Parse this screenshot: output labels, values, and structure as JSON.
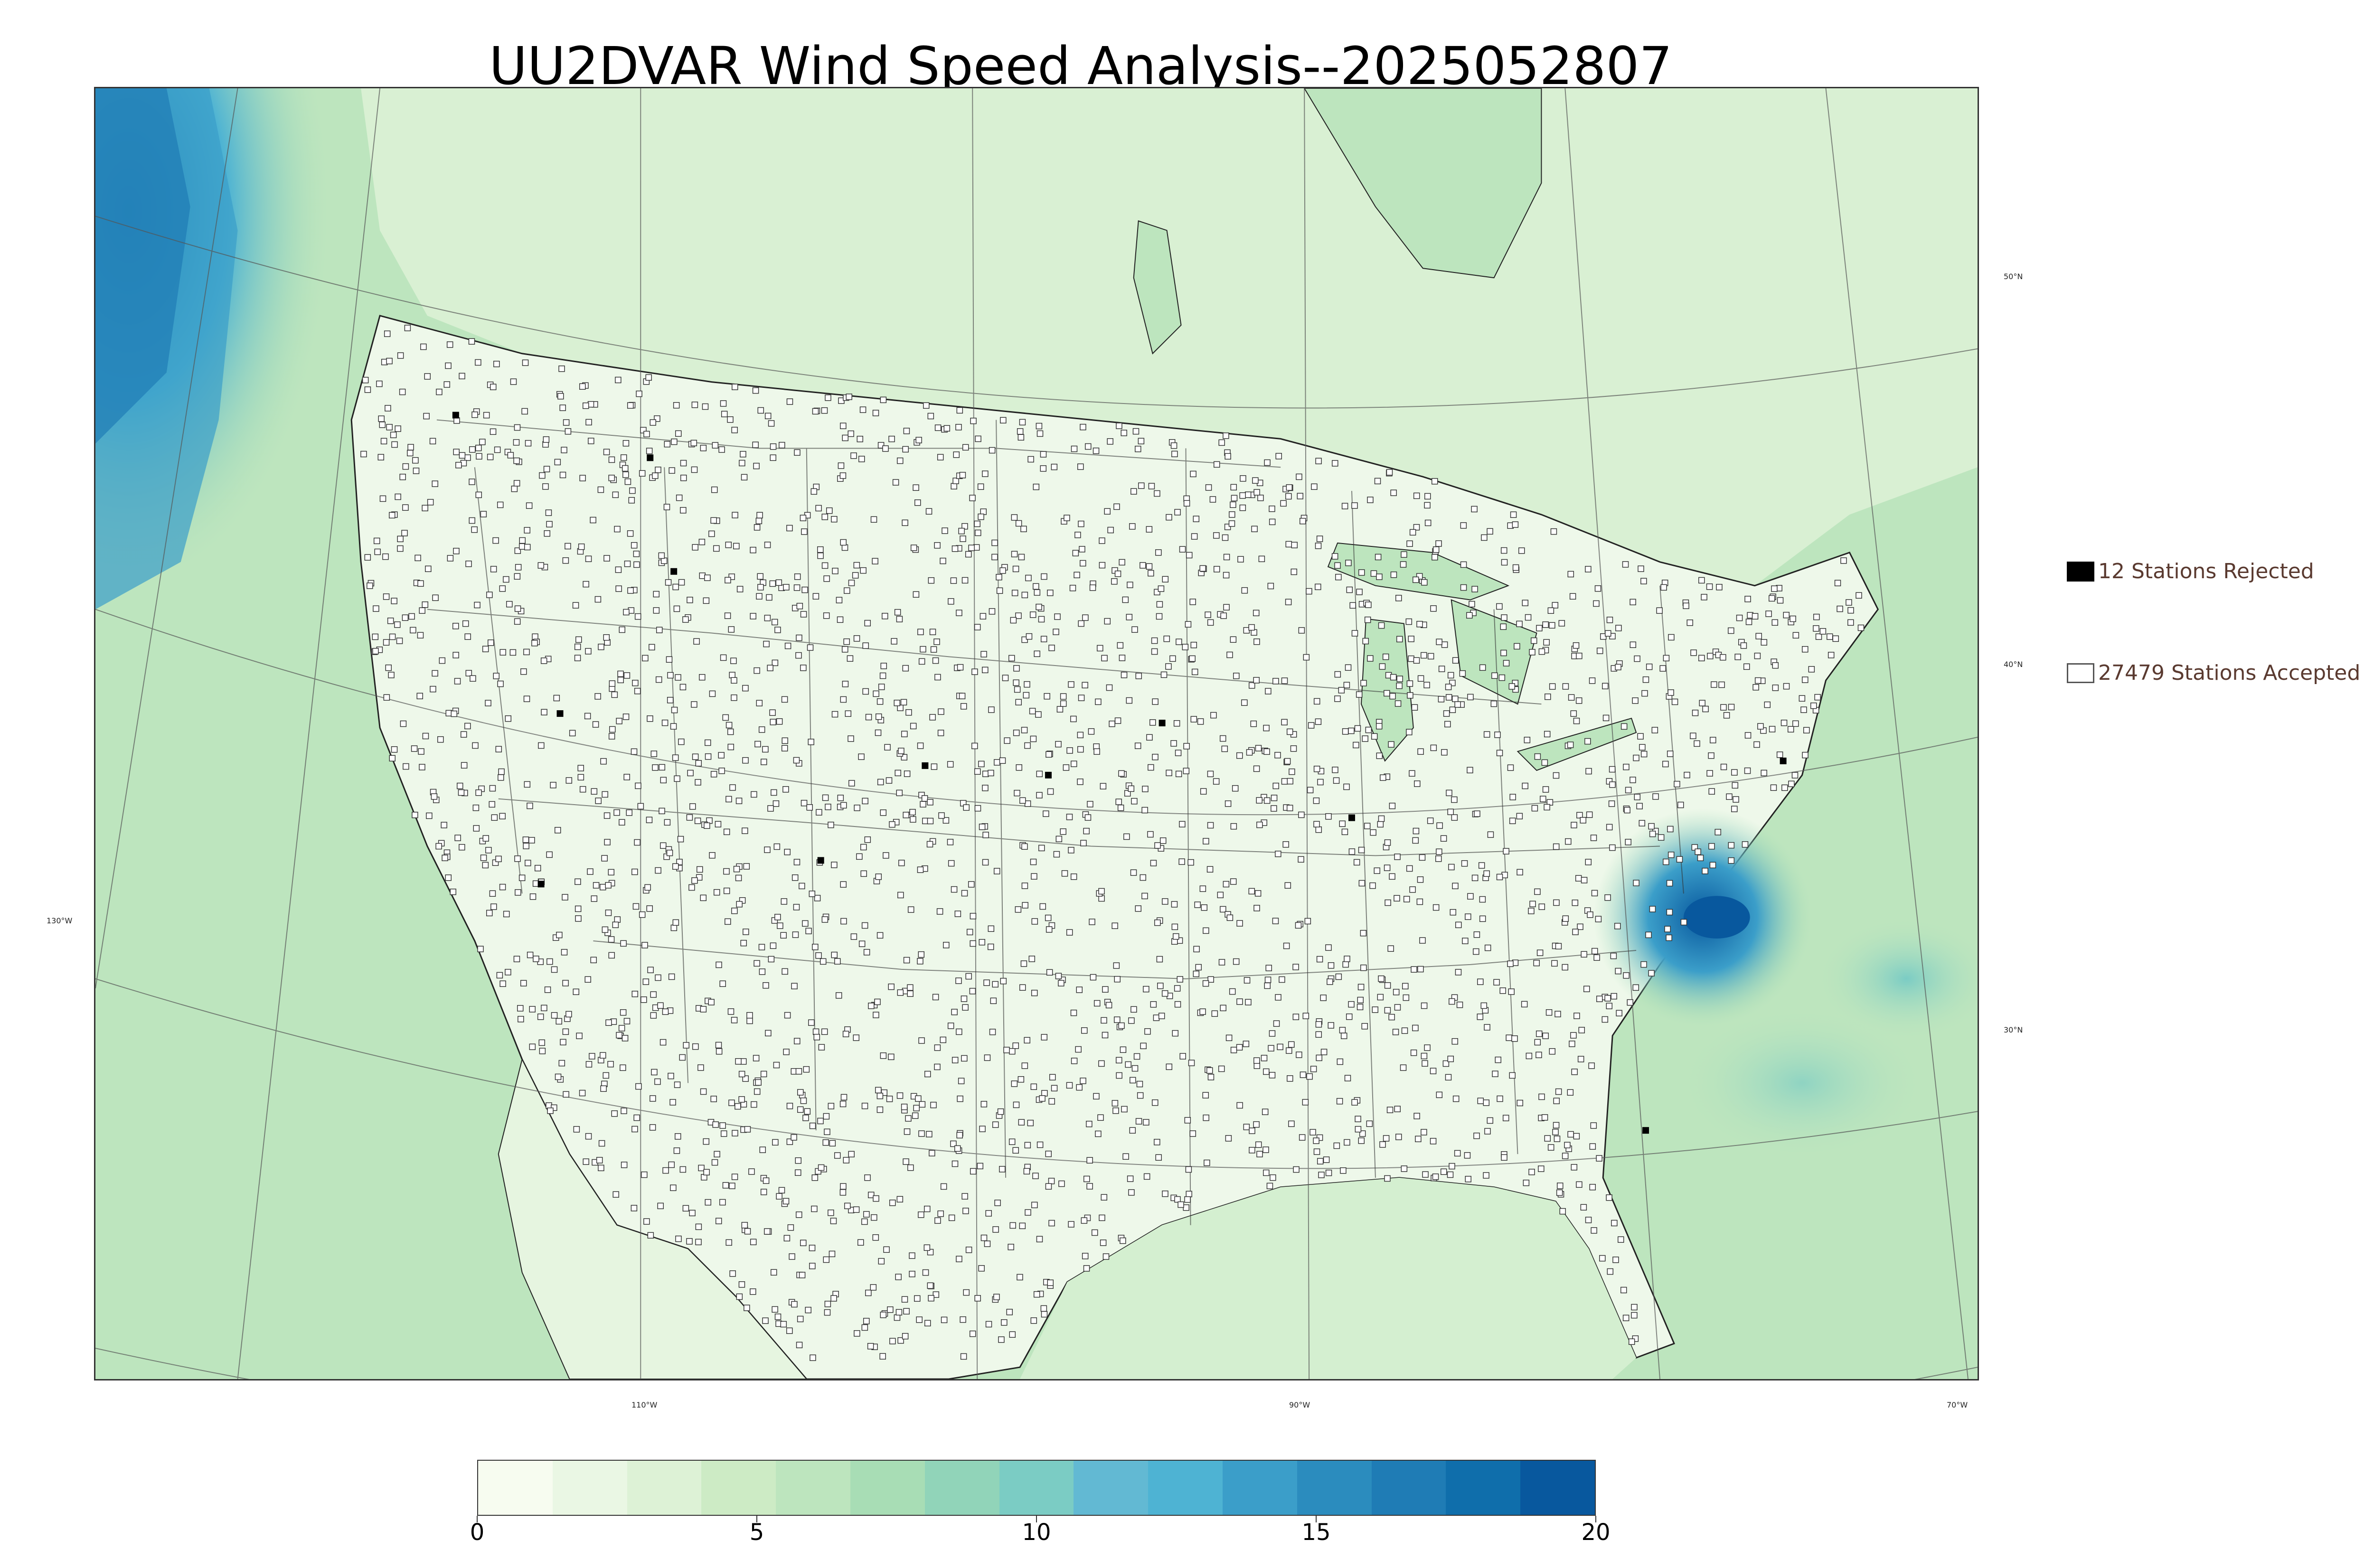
{
  "title": "UU2DVAR Wind Speed Analysis--2025052807",
  "legend": {
    "rejected_label": "12 Stations Rejected",
    "accepted_label": "27479 Stations Accepted",
    "rejected_count": 12,
    "accepted_count": 27479
  },
  "map_labels": {
    "lat_50": "50°N",
    "lat_40": "40°N",
    "lat_30": "30°N",
    "lon_130": "130°W",
    "lon_110": "110°W",
    "lon_90": "90°W",
    "lon_70": "70°W"
  },
  "colorbar": {
    "min": 0,
    "max": 20,
    "ticks": [
      "0",
      "5",
      "10",
      "15",
      "20"
    ],
    "colormap": "GnBu",
    "colors": [
      "#f7fcf0",
      "#eaf7e4",
      "#ddf2d6",
      "#cdebc5",
      "#bde5be",
      "#a8ddb5",
      "#91d4b9",
      "#7bccc4",
      "#62b9d3",
      "#4eb3d3",
      "#3b9ec9",
      "#2b8cbe",
      "#1f7cb5",
      "#0f6eab",
      "#08589e"
    ]
  },
  "colors": {
    "accepted_station_fill": "#ffffff",
    "rejected_station_fill": "#000000",
    "legend_text": "#5a3a30"
  }
}
